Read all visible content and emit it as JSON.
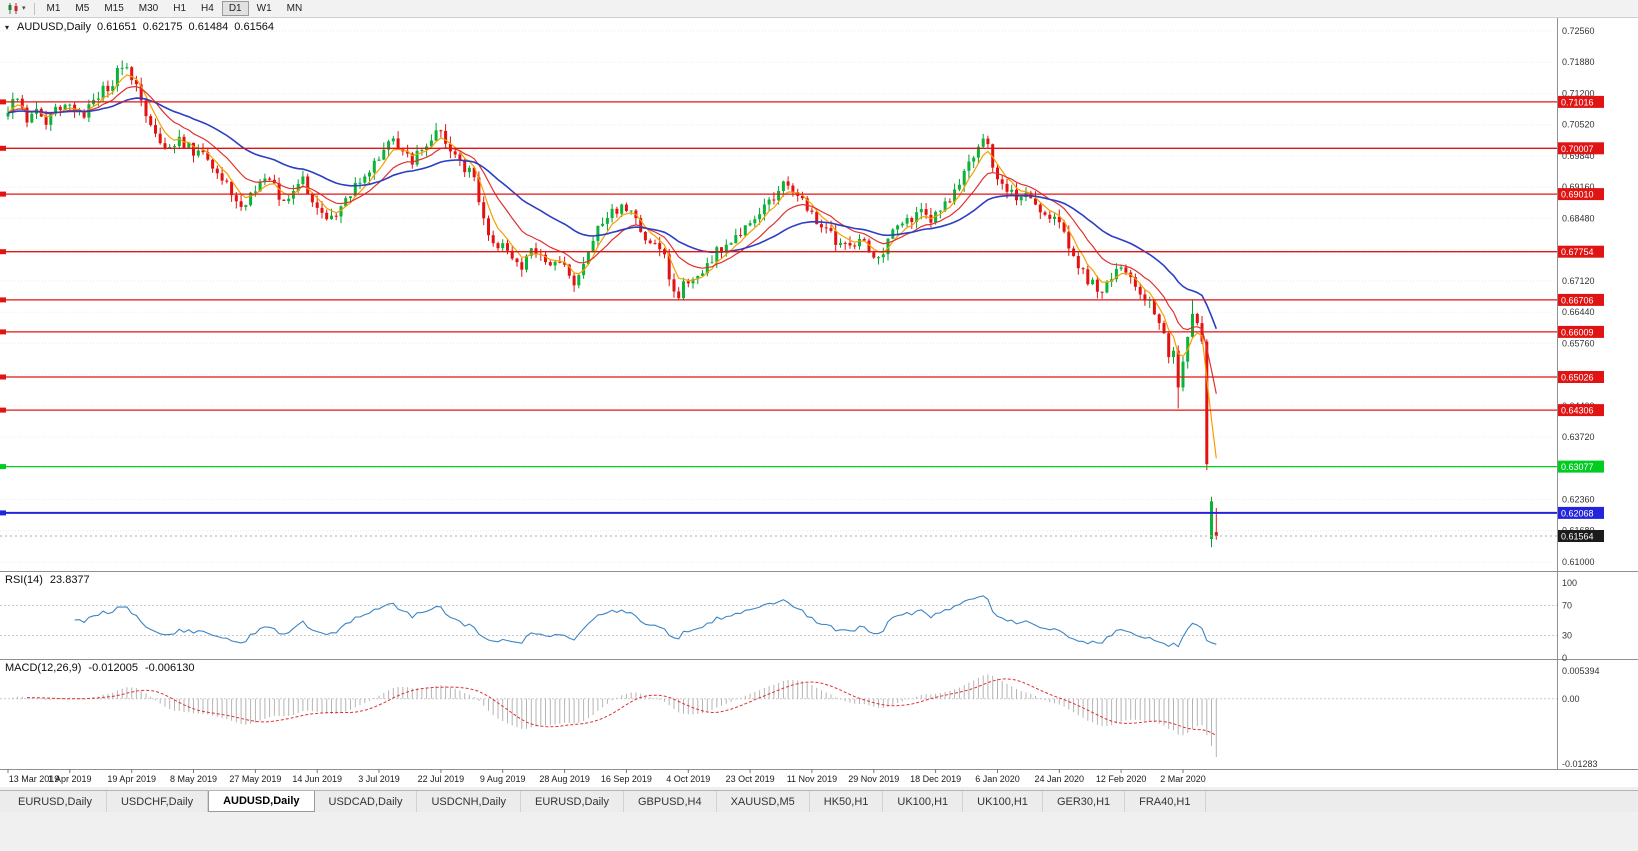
{
  "toolbar": {
    "timeframes": [
      "M1",
      "M5",
      "M15",
      "M30",
      "H1",
      "H4",
      "D1",
      "W1",
      "MN"
    ],
    "active_timeframe": "D1"
  },
  "chart": {
    "symbol_label": "AUDUSD,Daily",
    "open": "0.61651",
    "high": "0.62175",
    "low": "0.61484",
    "close": "0.61564"
  },
  "rsi": {
    "label": "RSI(14)",
    "value": "23.8377",
    "axis_labels": [
      "100",
      "70",
      "30",
      "0"
    ]
  },
  "macd": {
    "label": "MACD(12,26,9)",
    "value1": "-0.012005",
    "value2": "-0.006130",
    "axis_top": "0.005394",
    "axis_zero": "0.00",
    "axis_bottom": "-0.01283"
  },
  "tabs": {
    "active_index": 2,
    "items": [
      "EURUSD,Daily",
      "USDCHF,Daily",
      "AUDUSD,Daily",
      "USDCAD,Daily",
      "USDCNH,Daily",
      "EURUSD,Daily",
      "GBPUSD,H4",
      "XAUUSD,M5",
      "HK50,H1",
      "UK100,H1",
      "UK100,H1",
      "GER30,H1",
      "FRA40,H1"
    ]
  },
  "chart_data": {
    "type": "candlestick",
    "title": "AUDUSD,Daily",
    "symbol": "AUDUSD",
    "timeframe": "Daily",
    "n_candles": 255,
    "ylim": [
      0.6098,
      0.7284
    ],
    "current_price": 0.61564,
    "price_axis_ticks": [
      0.7256,
      0.7188,
      0.712,
      0.7052,
      0.6984,
      0.6916,
      0.6848,
      0.678,
      0.6712,
      0.6644,
      0.6576,
      0.6508,
      0.644,
      0.6372,
      0.6304,
      0.6236,
      0.6168,
      0.61
    ],
    "x_label_step": 13,
    "x_labels": [
      "13 Mar 2019",
      "1 Apr 2019",
      "19 Apr 2019",
      "8 May 2019",
      "27 May 2019",
      "14 Jun 2019",
      "3 Jul 2019",
      "22 Jul 2019",
      "9 Aug 2019",
      "28 Aug 2019",
      "16 Sep 2019",
      "4 Oct 2019",
      "23 Oct 2019",
      "11 Nov 2019",
      "29 Nov 2019",
      "18 Dec 2019",
      "6 Jan 2020",
      "24 Jan 2020",
      "12 Feb 2020",
      "2 Mar 2020"
    ],
    "hlines": [
      {
        "price": 0.71016,
        "color": "#e11414",
        "type": "resistance"
      },
      {
        "price": 0.70007,
        "color": "#e11414",
        "type": "resistance"
      },
      {
        "price": 0.6901,
        "color": "#e11414",
        "type": "resistance"
      },
      {
        "price": 0.67754,
        "color": "#e11414",
        "type": "resistance"
      },
      {
        "price": 0.66706,
        "color": "#e11414",
        "type": "resistance"
      },
      {
        "price": 0.66009,
        "color": "#e11414",
        "type": "resistance"
      },
      {
        "price": 0.65026,
        "color": "#e11414",
        "type": "resistance"
      },
      {
        "price": 0.64306,
        "color": "#e11414",
        "type": "resistance"
      },
      {
        "price": 0.63077,
        "color": "#00cc22",
        "type": "support"
      },
      {
        "price": 0.62068,
        "color": "#2424dd",
        "type": "support",
        "width": 2
      }
    ],
    "moving_averages": [
      {
        "period": 5,
        "color": "#f59f00"
      },
      {
        "period": 13,
        "color": "#e03131"
      },
      {
        "period": 34,
        "color": "#2b3fc4"
      }
    ],
    "indicators": [
      {
        "name": "RSI",
        "period": 14,
        "value": 23.8377,
        "levels": [
          70,
          30
        ]
      },
      {
        "name": "MACD",
        "fast": 12,
        "slow": 26,
        "signal": 9,
        "values": [
          -0.012005,
          -0.00613
        ],
        "range": [
          -0.01283,
          0.005394
        ]
      }
    ],
    "close_anchors": [
      [
        0,
        0.7078
      ],
      [
        2,
        0.712
      ],
      [
        4,
        0.7065
      ],
      [
        6,
        0.7082
      ],
      [
        8,
        0.7055
      ],
      [
        10,
        0.7085
      ],
      [
        13,
        0.7092
      ],
      [
        16,
        0.7072
      ],
      [
        18,
        0.7108
      ],
      [
        20,
        0.7125
      ],
      [
        22,
        0.7148
      ],
      [
        24,
        0.7185
      ],
      [
        26,
        0.7158
      ],
      [
        28,
        0.7098
      ],
      [
        30,
        0.7058
      ],
      [
        32,
        0.7018
      ],
      [
        34,
        0.7008
      ],
      [
        36,
        0.7022
      ],
      [
        39,
        0.6995
      ],
      [
        41,
        0.6986
      ],
      [
        43,
        0.6958
      ],
      [
        45,
        0.6934
      ],
      [
        47,
        0.6904
      ],
      [
        49,
        0.6878
      ],
      [
        50,
        0.687
      ],
      [
        52,
        0.6918
      ],
      [
        54,
        0.6934
      ],
      [
        56,
        0.6924
      ],
      [
        58,
        0.6876
      ],
      [
        60,
        0.6904
      ],
      [
        62,
        0.693
      ],
      [
        64,
        0.6888
      ],
      [
        65,
        0.687
      ],
      [
        67,
        0.6856
      ],
      [
        69,
        0.6864
      ],
      [
        71,
        0.6888
      ],
      [
        73,
        0.6924
      ],
      [
        75,
        0.6944
      ],
      [
        78,
        0.6986
      ],
      [
        80,
        0.7016
      ],
      [
        81,
        0.7028
      ],
      [
        83,
        0.699
      ],
      [
        85,
        0.6976
      ],
      [
        87,
        0.7004
      ],
      [
        89,
        0.7026
      ],
      [
        90,
        0.704
      ],
      [
        92,
        0.7018
      ],
      [
        94,
        0.6984
      ],
      [
        96,
        0.696
      ],
      [
        98,
        0.694
      ],
      [
        100,
        0.6844
      ],
      [
        102,
        0.6798
      ],
      [
        104,
        0.6786
      ],
      [
        106,
        0.676
      ],
      [
        108,
        0.6746
      ],
      [
        110,
        0.678
      ],
      [
        112,
        0.6768
      ],
      [
        114,
        0.6756
      ],
      [
        116,
        0.675
      ],
      [
        117,
        0.674
      ],
      [
        119,
        0.6714
      ],
      [
        121,
        0.6756
      ],
      [
        123,
        0.6804
      ],
      [
        125,
        0.6836
      ],
      [
        127,
        0.686
      ],
      [
        129,
        0.6878
      ],
      [
        130,
        0.687
      ],
      [
        132,
        0.684
      ],
      [
        134,
        0.6808
      ],
      [
        136,
        0.6786
      ],
      [
        138,
        0.6758
      ],
      [
        140,
        0.6696
      ],
      [
        141,
        0.6672
      ],
      [
        142,
        0.67
      ],
      [
        143,
        0.671
      ],
      [
        145,
        0.6728
      ],
      [
        147,
        0.675
      ],
      [
        149,
        0.6774
      ],
      [
        151,
        0.6796
      ],
      [
        153,
        0.681
      ],
      [
        156,
        0.6836
      ],
      [
        158,
        0.686
      ],
      [
        160,
        0.6884
      ],
      [
        162,
        0.6906
      ],
      [
        163,
        0.692
      ],
      [
        165,
        0.6904
      ],
      [
        167,
        0.6888
      ],
      [
        169,
        0.6856
      ],
      [
        171,
        0.683
      ],
      [
        173,
        0.681
      ],
      [
        175,
        0.6794
      ],
      [
        177,
        0.6786
      ],
      [
        179,
        0.6798
      ],
      [
        181,
        0.6784
      ],
      [
        182,
        0.677
      ],
      [
        184,
        0.6766
      ],
      [
        186,
        0.6818
      ],
      [
        188,
        0.683
      ],
      [
        190,
        0.6844
      ],
      [
        192,
        0.6864
      ],
      [
        194,
        0.685
      ],
      [
        195,
        0.6856
      ],
      [
        197,
        0.688
      ],
      [
        199,
        0.6904
      ],
      [
        201,
        0.694
      ],
      [
        203,
        0.6984
      ],
      [
        205,
        0.702
      ],
      [
        206,
        0.6998
      ],
      [
        208,
        0.6936
      ],
      [
        210,
        0.6904
      ],
      [
        212,
        0.6894
      ],
      [
        214,
        0.6906
      ],
      [
        216,
        0.688
      ],
      [
        218,
        0.6866
      ],
      [
        220,
        0.685
      ],
      [
        221,
        0.6838
      ],
      [
        223,
        0.6786
      ],
      [
        225,
        0.674
      ],
      [
        227,
        0.6716
      ],
      [
        229,
        0.6696
      ],
      [
        230,
        0.6686
      ],
      [
        232,
        0.672
      ],
      [
        234,
        0.674
      ],
      [
        236,
        0.671
      ],
      [
        238,
        0.6686
      ],
      [
        240,
        0.666
      ],
      [
        242,
        0.662
      ],
      [
        243,
        0.6598
      ],
      [
        244,
        0.6546
      ],
      [
        245,
        0.656
      ],
      [
        246,
        0.648
      ],
      [
        247,
        0.6536
      ],
      [
        248,
        0.659
      ],
      [
        249,
        0.664
      ],
      [
        250,
        0.662
      ],
      [
        251,
        0.658
      ],
      [
        252,
        0.6313
      ],
      [
        253,
        0.6232
      ],
      [
        254,
        0.61564
      ]
    ],
    "special_wicks": {
      "24": {
        "h": 0.7192
      },
      "50": {
        "l": 0.6865
      },
      "119": {
        "l": 0.6688
      },
      "141": {
        "l": 0.667
      },
      "163": {
        "h": 0.693
      },
      "205": {
        "h": 0.7032
      },
      "246": {
        "l": 0.6434
      },
      "249": {
        "h": 0.667
      },
      "252": {
        "l": 0.63
      }
    },
    "special_candles": {
      "253": {
        "o": 0.615,
        "h": 0.6242,
        "l": 0.6132,
        "c": 0.6232
      },
      "254": {
        "o": 0.61651,
        "h": 0.62175,
        "l": 0.61484,
        "c": 0.61564
      }
    }
  }
}
